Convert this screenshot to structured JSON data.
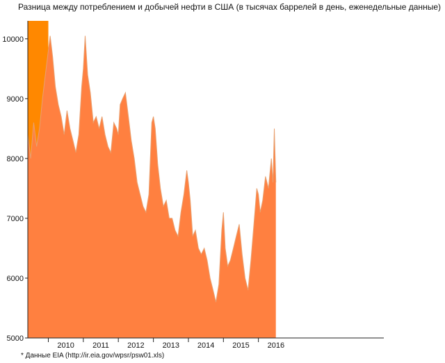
{
  "chart_data": {
    "type": "area",
    "title": "Разница между потреблением и добычей нефти в США (в тысячах баррелей в день, еженедельные данные)",
    "xlabel": "",
    "ylabel": "",
    "ylim": [
      5000,
      10300
    ],
    "x_range": [
      "2009-06-01",
      "2019-08-01"
    ],
    "yticks": [
      5000,
      6000,
      7000,
      8000,
      9000,
      10000
    ],
    "xticks": [
      "2010",
      "2011",
      "2012",
      "2013",
      "2014",
      "2015",
      "2016"
    ],
    "grid": false,
    "colors": {
      "fill": "#ff8040",
      "line": "#e8a070",
      "highlight": "#ff8800",
      "axis": "#222222"
    },
    "highlights": [
      {
        "x_start": "2009-06-01",
        "x_end": "2010-01-01",
        "y_top": 10300
      },
      {
        "x_start": "2009-06-01",
        "x_end": "2016-01-01",
        "y_top": 5400
      }
    ],
    "series": [
      {
        "points": [
          [
            "2009-06-01",
            8400
          ],
          [
            "2009-07-01",
            8000
          ],
          [
            "2009-08-01",
            8600
          ],
          [
            "2009-09-01",
            8200
          ],
          [
            "2009-10-01",
            8500
          ],
          [
            "2009-11-01",
            9000
          ],
          [
            "2009-12-01",
            9400
          ],
          [
            "2010-01-01",
            9800
          ],
          [
            "2010-01-20",
            10050
          ],
          [
            "2010-02-15",
            9700
          ],
          [
            "2010-03-15",
            9200
          ],
          [
            "2010-04-15",
            8900
          ],
          [
            "2010-05-15",
            8700
          ],
          [
            "2010-06-15",
            8400
          ],
          [
            "2010-07-15",
            8800
          ],
          [
            "2010-08-15",
            8500
          ],
          [
            "2010-09-15",
            8300
          ],
          [
            "2010-10-15",
            8100
          ],
          [
            "2010-11-15",
            8400
          ],
          [
            "2010-12-15",
            9200
          ],
          [
            "2011-01-01",
            9500
          ],
          [
            "2011-01-20",
            10050
          ],
          [
            "2011-02-15",
            9400
          ],
          [
            "2011-03-15",
            9100
          ],
          [
            "2011-04-15",
            8600
          ],
          [
            "2011-05-15",
            8700
          ],
          [
            "2011-06-15",
            8500
          ],
          [
            "2011-07-15",
            8700
          ],
          [
            "2011-08-15",
            8400
          ],
          [
            "2011-09-15",
            8200
          ],
          [
            "2011-10-15",
            8100
          ],
          [
            "2011-11-15",
            8600
          ],
          [
            "2011-12-15",
            8500
          ],
          [
            "2012-01-01",
            8400
          ],
          [
            "2012-01-20",
            8900
          ],
          [
            "2012-02-15",
            9000
          ],
          [
            "2012-03-15",
            9100
          ],
          [
            "2012-04-15",
            8700
          ],
          [
            "2012-05-15",
            8300
          ],
          [
            "2012-06-15",
            8000
          ],
          [
            "2012-07-15",
            7600
          ],
          [
            "2012-08-15",
            7400
          ],
          [
            "2012-09-15",
            7200
          ],
          [
            "2012-10-15",
            7100
          ],
          [
            "2012-11-15",
            7400
          ],
          [
            "2012-12-15",
            8600
          ],
          [
            "2013-01-01",
            8700
          ],
          [
            "2013-01-20",
            8500
          ],
          [
            "2013-02-15",
            7900
          ],
          [
            "2013-03-15",
            7500
          ],
          [
            "2013-04-15",
            7200
          ],
          [
            "2013-05-15",
            7300
          ],
          [
            "2013-06-15",
            7000
          ],
          [
            "2013-07-15",
            7000
          ],
          [
            "2013-08-15",
            6800
          ],
          [
            "2013-09-15",
            6700
          ],
          [
            "2013-10-15",
            7100
          ],
          [
            "2013-11-15",
            7400
          ],
          [
            "2013-12-15",
            7800
          ],
          [
            "2014-01-01",
            7600
          ],
          [
            "2014-01-20",
            7300
          ],
          [
            "2014-02-15",
            6700
          ],
          [
            "2014-03-15",
            6800
          ],
          [
            "2014-04-15",
            6500
          ],
          [
            "2014-05-15",
            6400
          ],
          [
            "2014-06-15",
            6500
          ],
          [
            "2014-07-15",
            6300
          ],
          [
            "2014-08-15",
            6000
          ],
          [
            "2014-09-15",
            5800
          ],
          [
            "2014-10-15",
            5600
          ],
          [
            "2014-11-15",
            5900
          ],
          [
            "2014-12-15",
            6800
          ],
          [
            "2015-01-01",
            7100
          ],
          [
            "2015-01-20",
            6500
          ],
          [
            "2015-02-15",
            6200
          ],
          [
            "2015-03-15",
            6300
          ],
          [
            "2015-04-15",
            6500
          ],
          [
            "2015-05-15",
            6700
          ],
          [
            "2015-06-15",
            6900
          ],
          [
            "2015-07-15",
            6400
          ],
          [
            "2015-08-15",
            6000
          ],
          [
            "2015-09-15",
            5800
          ],
          [
            "2015-10-15",
            6300
          ],
          [
            "2015-11-15",
            6900
          ],
          [
            "2015-12-15",
            7500
          ],
          [
            "2016-01-01",
            7400
          ],
          [
            "2016-01-20",
            7100
          ],
          [
            "2016-02-15",
            7300
          ],
          [
            "2016-03-15",
            7700
          ],
          [
            "2016-04-15",
            7500
          ],
          [
            "2016-05-15",
            8000
          ],
          [
            "2016-06-01",
            7600
          ],
          [
            "2016-06-15",
            8500
          ],
          [
            "2016-07-01",
            7600
          ]
        ]
      }
    ]
  },
  "source_note": "* Данные EIA (http://ir.eia.gov/wpsr/psw01.xls)"
}
